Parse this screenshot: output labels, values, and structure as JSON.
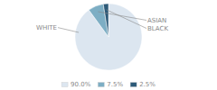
{
  "chart_data": {
    "type": "pie",
    "categories": [
      "WHITE",
      "ASIAN",
      "BLACK"
    ],
    "values": [
      90.0,
      7.5,
      2.5
    ],
    "value_labels": [
      "90.0%",
      "7.5%",
      "2.5%"
    ],
    "colors": [
      "#dce6f0",
      "#7daec4",
      "#2d5a78"
    ],
    "legend": "bottom"
  }
}
